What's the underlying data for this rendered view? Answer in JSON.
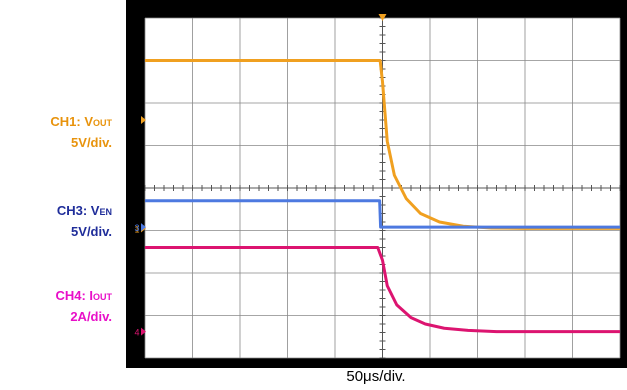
{
  "labels": [
    {
      "name": "ch1",
      "prefix": "CH1: V",
      "sub": "OUT",
      "scale": "5V/div.",
      "color": "#E8930C"
    },
    {
      "name": "ch3",
      "prefix": "CH3: V",
      "sub": "EN",
      "scale": "5V/div.",
      "color": "#1F2D9A"
    },
    {
      "name": "ch4",
      "prefix": "CH4: I",
      "sub": "OUT",
      "scale": "2A/div.",
      "color": "#E80FC8"
    }
  ],
  "timebase": "50μs/div.",
  "chart_data": {
    "type": "line",
    "x_unit": "div",
    "xlim": [
      0,
      10
    ],
    "ylim": [
      -4,
      4
    ],
    "grid": true,
    "x_divisions": 10,
    "y_divisions": 8,
    "trigger_x": 5,
    "series": [
      {
        "channel": "1",
        "color": "#F0A020",
        "x": [
          0,
          4.95,
          5.0,
          5.1,
          5.25,
          5.5,
          5.8,
          6.2,
          6.7,
          7.3,
          8.0,
          10
        ],
        "y": [
          3.0,
          3.0,
          2.5,
          1.1,
          0.3,
          -0.25,
          -0.6,
          -0.8,
          -0.9,
          -0.94,
          -0.95,
          -0.95
        ]
      },
      {
        "channel": "3",
        "color": "#4D79E0",
        "x": [
          0,
          4.94,
          4.96,
          5.0,
          10
        ],
        "y": [
          -0.3,
          -0.3,
          -0.92,
          -0.92,
          -0.92
        ]
      },
      {
        "channel": "4",
        "color": "#DC1470",
        "x": [
          0,
          4.9,
          5.0,
          5.1,
          5.3,
          5.6,
          5.9,
          6.3,
          6.8,
          7.4,
          8.2,
          10
        ],
        "y": [
          -1.4,
          -1.4,
          -1.7,
          -2.3,
          -2.75,
          -3.05,
          -3.2,
          -3.3,
          -3.35,
          -3.38,
          -3.38,
          -3.38
        ]
      }
    ]
  }
}
